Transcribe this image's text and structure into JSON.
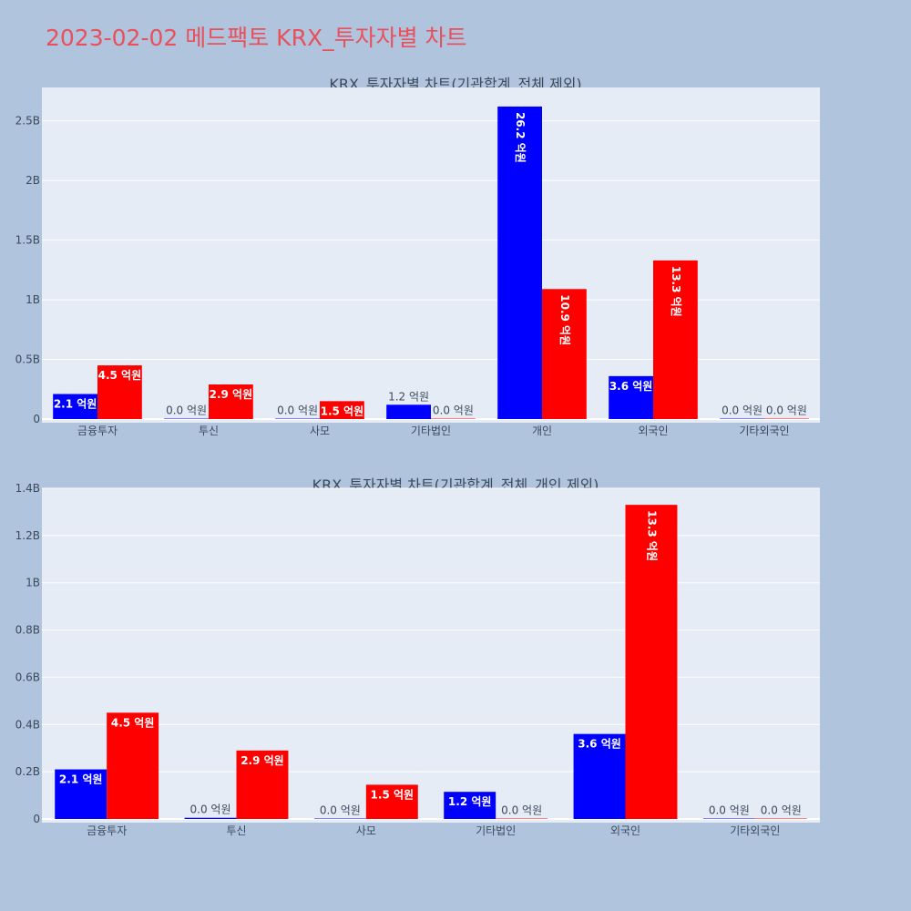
{
  "page_title": "2023-02-02 메드팩토 KRX_투자자별 차트",
  "colors": {
    "buy": "#0000ff",
    "sell": "#ff0000",
    "plot_bg": "#e5ecf6",
    "page_bg": "#b0c4de",
    "title": "#e8505b"
  },
  "chart_data": [
    {
      "type": "bar",
      "title": "KRX_투자자별 차트(기관합계_전체 제외)",
      "categories": [
        "금융투자",
        "투신",
        "사모",
        "기타법인",
        "개인",
        "외국인",
        "기타외국인"
      ],
      "series": [
        {
          "values": [
            0.21,
            0.0,
            0.0,
            0.12,
            2.62,
            0.36,
            0.0
          ],
          "labels": [
            "2.1 억원",
            "0.0 억원",
            "0.0 억원",
            "1.2 억원",
            "26.2 억원",
            "3.6 억원",
            "0.0 억원"
          ]
        },
        {
          "values": [
            0.45,
            0.29,
            0.15,
            0.0,
            1.09,
            1.33,
            0.0
          ],
          "labels": [
            "4.5 억원",
            "2.9 억원",
            "1.5 억원",
            "0.0 억원",
            "10.9 억원",
            "13.3 억원",
            "0.0 억원"
          ]
        }
      ],
      "ylim": [
        0,
        2.78
      ],
      "yticks": [
        0,
        0.5,
        1,
        1.5,
        2,
        2.5
      ],
      "ytick_labels": [
        "0",
        "0.5B",
        "1B",
        "1.5B",
        "2B",
        "2.5B"
      ],
      "grid": true,
      "legend": "none"
    },
    {
      "type": "bar",
      "title": "KRX_투자자별 차트(기관합계_전체_개인 제외)",
      "categories": [
        "금융투자",
        "투신",
        "사모",
        "기타법인",
        "외국인",
        "기타외국인"
      ],
      "series": [
        {
          "values": [
            0.21,
            0.005,
            0.0,
            0.115,
            0.36,
            0.0
          ],
          "labels": [
            "2.1 억원",
            "0.0 억원",
            "0.0 억원",
            "1.2 억원",
            "3.6 억원",
            "0.0 억원"
          ]
        },
        {
          "values": [
            0.45,
            0.29,
            0.145,
            0.0,
            1.33,
            0.0
          ],
          "labels": [
            "4.5 억원",
            "2.9 억원",
            "1.5 억원",
            "0.0 억원",
            "13.3 억원",
            "0.0 억원"
          ]
        }
      ],
      "ylim": [
        0,
        1.4
      ],
      "yticks": [
        0,
        0.2,
        0.4,
        0.6,
        0.8,
        1.0,
        1.2,
        1.4
      ],
      "ytick_labels": [
        "0",
        "0.2B",
        "0.4B",
        "0.6B",
        "0.8B",
        "1B",
        "1.2B",
        "1.4B"
      ],
      "grid": true,
      "legend": "none"
    }
  ]
}
